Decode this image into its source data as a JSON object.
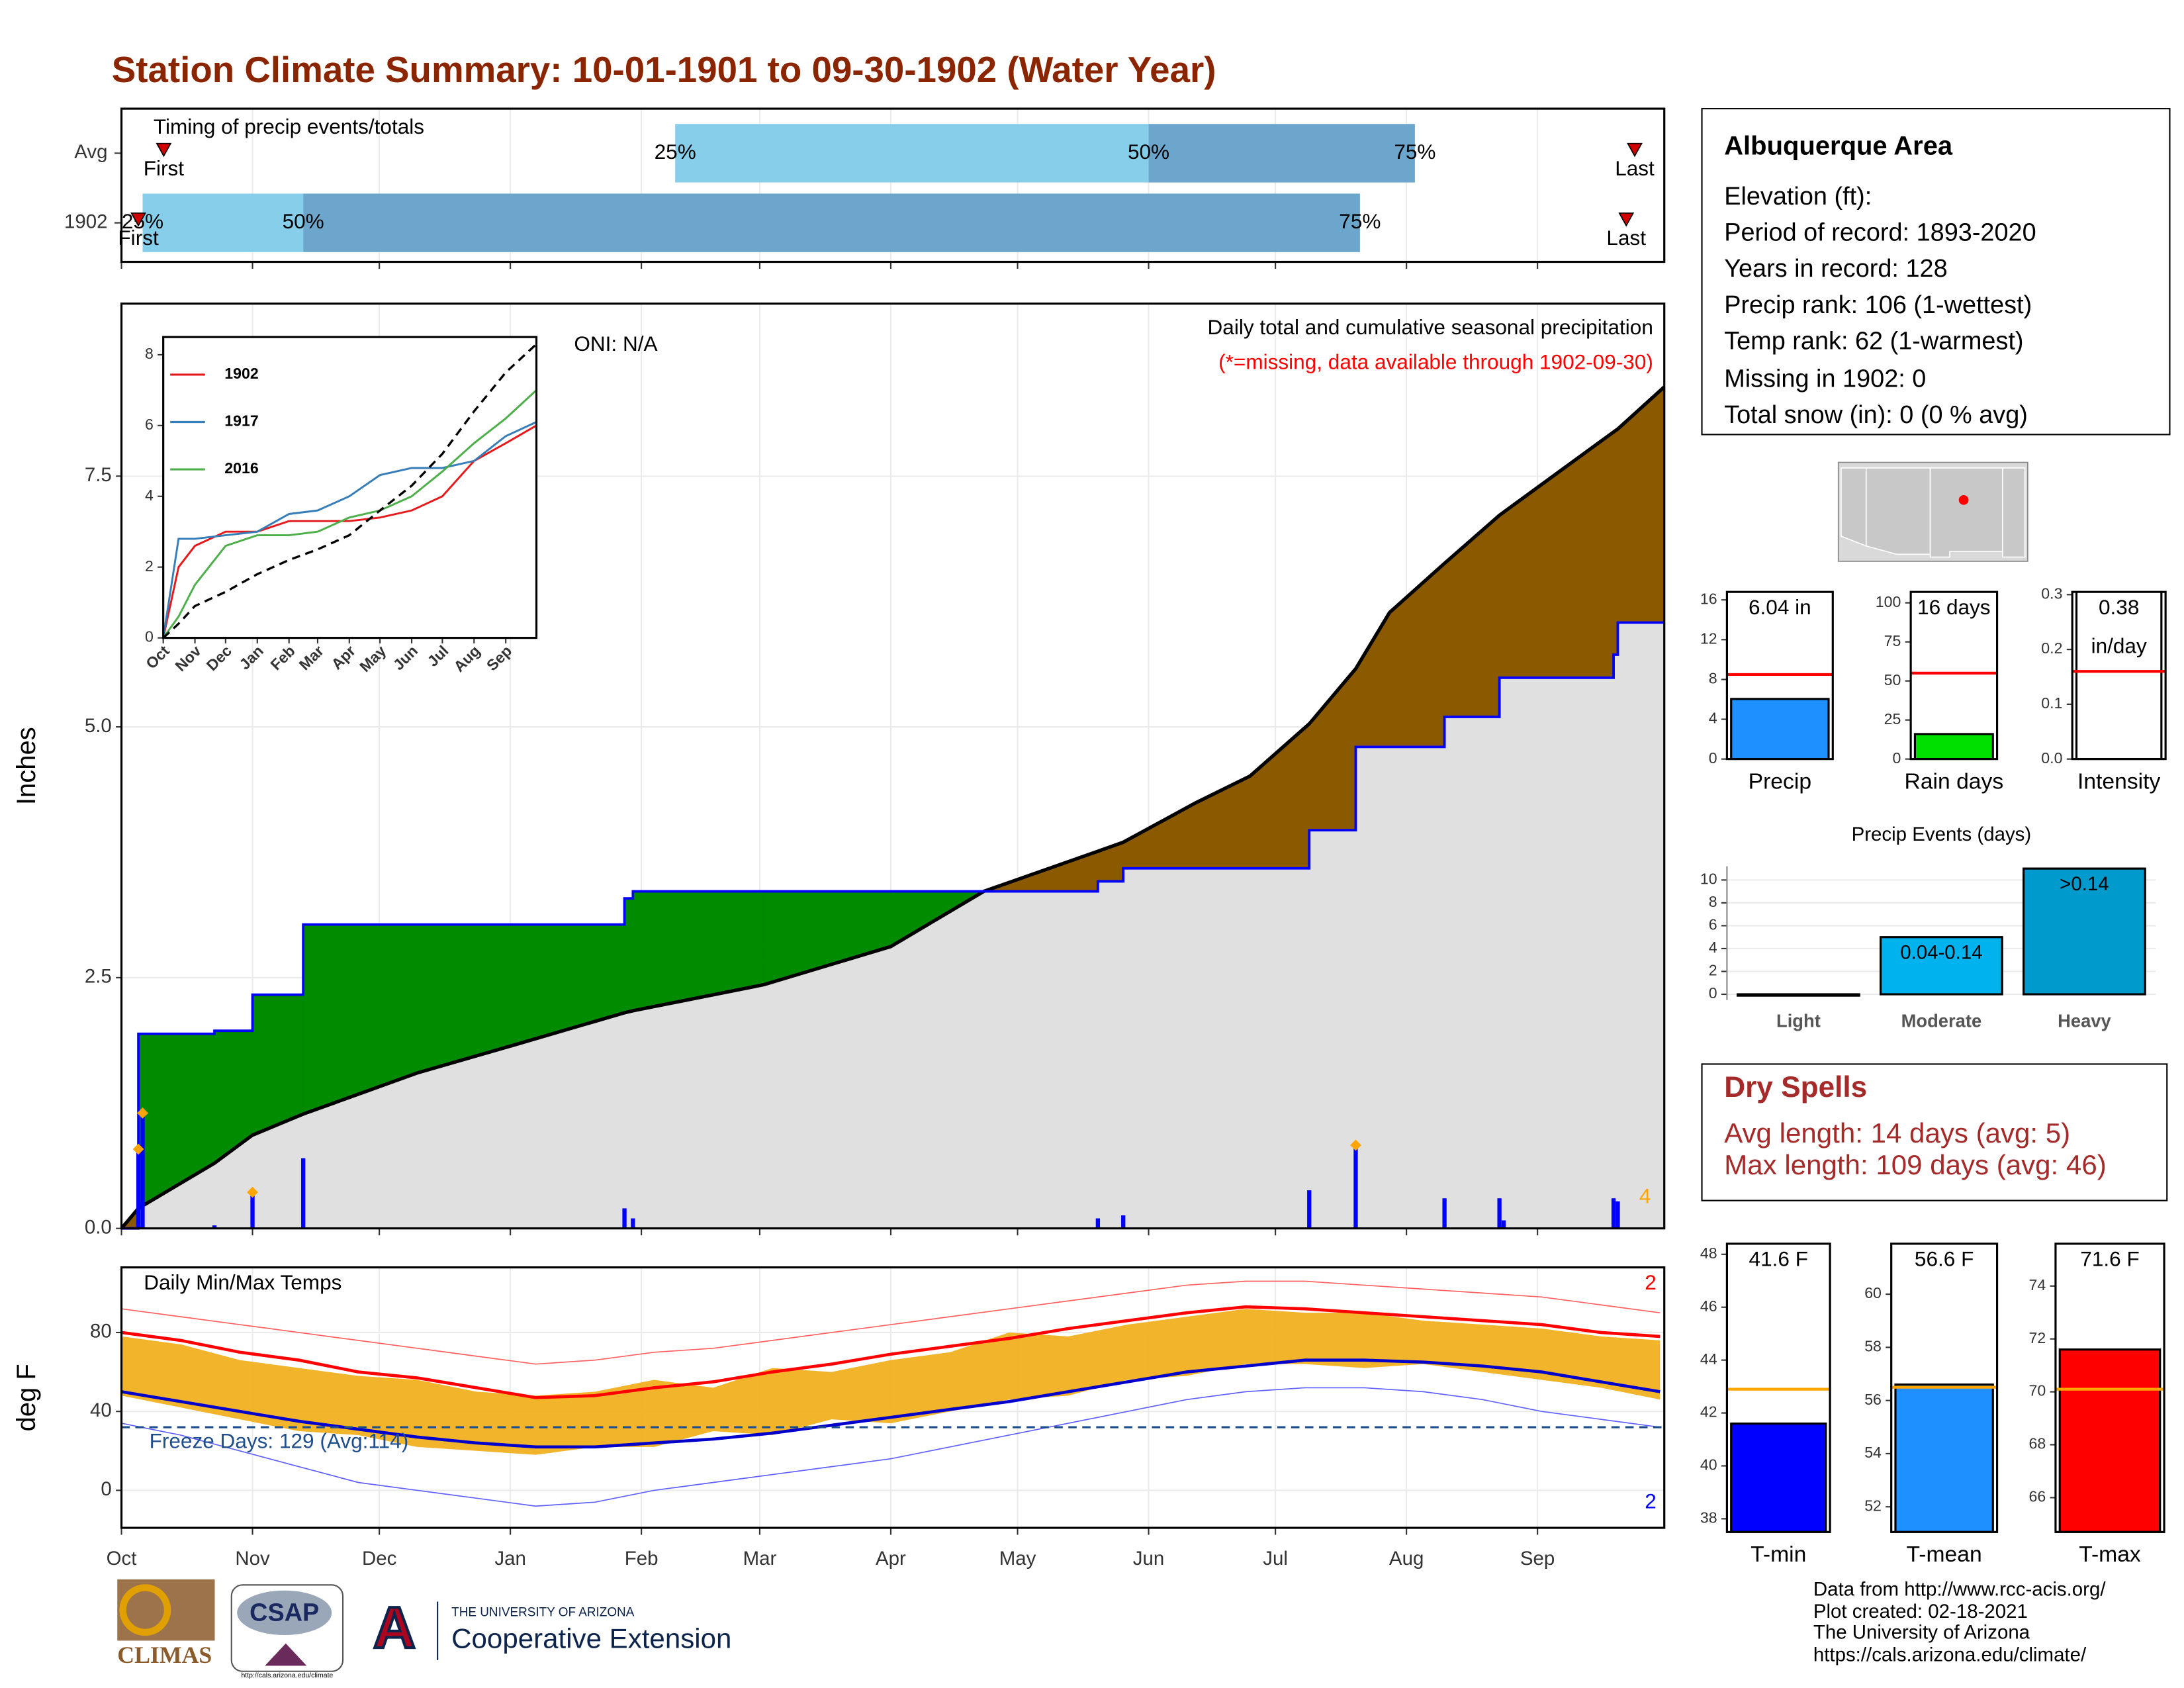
{
  "title": "Station Climate Summary: 10-01-1901 to 09-30-1902 (Water Year)",
  "station": {
    "name": "Albuquerque Area",
    "lines": [
      "Elevation (ft):",
      "Period of record: 1893-2020",
      "Years in record: 128",
      "Precip rank: 106 (1-wettest)",
      "Temp rank: 62 (1-warmest)",
      "Missing in 1902: 0",
      "Total snow (in): 0 (0 % avg)"
    ]
  },
  "dry_spells": {
    "title": "Dry Spells",
    "lines": [
      "Avg length: 14 days (avg: 5)",
      "Max length: 109 days (avg: 46)"
    ]
  },
  "footer": [
    "Data from http://www.rcc-acis.org/",
    "Plot created: 02-18-2021",
    "The University of Arizona",
    "https://cals.arizona.edu/climate/"
  ],
  "logos": {
    "climas": "CLIMAS",
    "csap": "CSAP",
    "csap_url": "http://cals.arizona.edu/climate",
    "ua_letter": "A",
    "ua_name": "THE UNIVERSITY OF ARIZONA",
    "extension": "Cooperative Extension"
  },
  "chart_data": [
    {
      "type": "timeline",
      "title": "Timing of precip events/totals",
      "xlim": [
        0,
        365
      ],
      "marker_labels": {
        "first": "First",
        "p25": "25%",
        "p50": "50%",
        "p75": "75%",
        "last": "Last"
      },
      "light_color": "#87ceeb",
      "dark_color": "#6ca6cd",
      "marker_color": "#d00000",
      "rows": [
        {
          "label": "Avg",
          "first": 10,
          "p25": 131,
          "p50": 243,
          "p75": 306,
          "last": 358
        },
        {
          "label": "1902",
          "first": 4,
          "p25": 5,
          "p50": 43,
          "p75": 293,
          "last": 356
        }
      ]
    },
    {
      "type": "area",
      "title": "Daily total and cumulative seasonal precipitation",
      "note": "(*=missing, data available through 1902-09-30)",
      "oni": "ONI: N/A",
      "y_label": "Inches",
      "corner_label": "4",
      "corner_color": "#ffa500",
      "xlim": [
        0,
        365
      ],
      "ylim": [
        0,
        9.22
      ],
      "yticks": [
        {
          "value": 0,
          "label": "0.0"
        },
        2.5,
        {
          "value": 5,
          "label": "5.0"
        },
        7.5
      ],
      "above_color": "#008b00",
      "below_color": "#8b5a00",
      "base_color": "#e0e0e0",
      "x": [
        0,
        4,
        4,
        22,
        22,
        31,
        31,
        43,
        43,
        70,
        93,
        119,
        119,
        121,
        121,
        152,
        182,
        204,
        231,
        231,
        237,
        237,
        254,
        267,
        281,
        281,
        292,
        292,
        300,
        313,
        313,
        326,
        326,
        353,
        353,
        354,
        354,
        365
      ],
      "series": [
        {
          "name": "1902",
          "color": "#0000ff",
          "values": [
            0,
            0,
            1.94,
            1.94,
            1.97,
            1.97,
            2.33,
            2.33,
            3.03,
            3.03,
            3.03,
            3.03,
            3.29,
            3.29,
            3.36,
            3.36,
            3.36,
            3.36,
            3.36,
            3.46,
            3.46,
            3.59,
            3.59,
            3.59,
            3.59,
            3.97,
            3.97,
            4.8,
            4.8,
            4.8,
            5.1,
            5.1,
            5.49,
            5.49,
            5.72,
            5.72,
            6.04,
            6.04
          ]
        },
        {
          "name": "Average",
          "color": "#000000",
          "values": [
            0,
            0.2,
            0.2,
            0.65,
            0.65,
            0.93,
            0.93,
            1.14,
            1.14,
            1.55,
            1.83,
            2.15,
            2.15,
            2.17,
            2.17,
            2.43,
            2.81,
            3.36,
            3.76,
            3.76,
            3.85,
            3.85,
            4.24,
            4.51,
            5.03,
            5.03,
            5.58,
            5.58,
            6.14,
            6.63,
            6.63,
            7.11,
            7.11,
            7.94,
            7.94,
            7.97,
            7.97,
            8.39
          ]
        }
      ],
      "bars": {
        "color": "#0000ff",
        "x": [
          4,
          5,
          22,
          31,
          43,
          119,
          121,
          231,
          237,
          281,
          292,
          313,
          326,
          327,
          353,
          354
        ],
        "values": [
          0.79,
          1.15,
          0.03,
          0.36,
          0.7,
          0.2,
          0.1,
          0.1,
          0.13,
          0.38,
          0.83,
          0.3,
          0.3,
          0.08,
          0.3,
          0.27
        ],
        "records": [
          0,
          1,
          3,
          10
        ],
        "record_color": "#ffa500"
      }
    },
    {
      "type": "line",
      "xlim": [
        0,
        365
      ],
      "ylim": [
        0,
        8.5
      ],
      "yticks": [
        0,
        2,
        4,
        6,
        8
      ],
      "xticks": [
        {
          "value": 0,
          "label": "Oct"
        },
        {
          "value": 31,
          "label": "Nov"
        },
        {
          "value": 61,
          "label": "Dec"
        },
        {
          "value": 92,
          "label": "Jan"
        },
        {
          "value": 123,
          "label": "Feb"
        },
        {
          "value": 151,
          "label": "Mar"
        },
        {
          "value": 182,
          "label": "Apr"
        },
        {
          "value": 212,
          "label": "May"
        },
        {
          "value": 243,
          "label": "Jun"
        },
        {
          "value": 273,
          "label": "Jul"
        },
        {
          "value": 304,
          "label": "Aug"
        },
        {
          "value": 335,
          "label": "Sep"
        }
      ],
      "x": [
        0,
        15,
        31,
        61,
        92,
        123,
        151,
        182,
        212,
        243,
        273,
        304,
        335,
        365
      ],
      "series": [
        {
          "name": "1902",
          "color": "#e41a1c",
          "values": [
            0,
            2.0,
            2.6,
            3.0,
            3.0,
            3.3,
            3.3,
            3.3,
            3.4,
            3.6,
            4.0,
            5.0,
            5.5,
            6.0
          ]
        },
        {
          "name": "1917",
          "color": "#377eb8",
          "values": [
            0,
            2.8,
            2.8,
            2.9,
            3.0,
            3.5,
            3.6,
            4.0,
            4.6,
            4.8,
            4.8,
            5.0,
            5.7,
            6.1
          ]
        },
        {
          "name": "2016",
          "color": "#4daf4a",
          "values": [
            0,
            0.6,
            1.5,
            2.6,
            2.9,
            2.9,
            3.0,
            3.4,
            3.6,
            4.0,
            4.7,
            5.5,
            6.2,
            7.0
          ]
        },
        {
          "color": "#000000",
          "dash": true,
          "values": [
            0,
            0.4,
            0.9,
            1.3,
            1.8,
            2.2,
            2.5,
            2.9,
            3.6,
            4.3,
            5.2,
            6.4,
            7.5,
            8.3
          ]
        }
      ]
    },
    {
      "type": "range",
      "title": "Daily Min/Max Temps",
      "y_label": "deg F",
      "xlim": [
        0,
        365
      ],
      "ylim": [
        -19,
        113
      ],
      "yticks": [
        0,
        40,
        80
      ],
      "xticks": [
        {
          "value": 0,
          "label": "Oct"
        },
        {
          "value": 31,
          "label": "Nov"
        },
        {
          "value": 61,
          "label": "Dec"
        },
        {
          "value": 92,
          "label": "Jan"
        },
        {
          "value": 123,
          "label": "Feb"
        },
        {
          "value": 151,
          "label": "Mar"
        },
        {
          "value": 182,
          "label": "Apr"
        },
        {
          "value": 212,
          "label": "May"
        },
        {
          "value": 243,
          "label": "Jun"
        },
        {
          "value": 273,
          "label": "Jul"
        },
        {
          "value": 304,
          "label": "Aug"
        },
        {
          "value": 335,
          "label": "Sep"
        }
      ],
      "freeze_line": 32,
      "freeze_color": "#1f4e8c",
      "freeze_label": "Freeze Days: 129 (Avg:114)",
      "max_records_label": "2",
      "min_records_label": "2",
      "x": [
        0,
        14,
        28,
        42,
        56,
        70,
        84,
        98,
        112,
        126,
        140,
        154,
        168,
        182,
        196,
        210,
        224,
        238,
        252,
        266,
        280,
        294,
        308,
        322,
        336,
        350,
        364
      ],
      "daily_max": {
        "color": "#f0b020",
        "values": [
          78,
          74,
          66,
          62,
          58,
          56,
          50,
          48,
          50,
          56,
          52,
          62,
          60,
          66,
          70,
          80,
          78,
          84,
          88,
          92,
          90,
          90,
          86,
          84,
          82,
          78,
          76
        ]
      },
      "daily_min": {
        "color": "#f0b020",
        "values": [
          48,
          42,
          36,
          30,
          28,
          22,
          20,
          18,
          22,
          22,
          30,
          28,
          36,
          34,
          40,
          46,
          48,
          56,
          58,
          64,
          64,
          62,
          64,
          60,
          56,
          52,
          46
        ]
      },
      "avg_max": {
        "color": "#ff0000",
        "values": [
          80,
          76,
          70,
          66,
          60,
          57,
          52,
          47,
          48,
          52,
          55,
          60,
          64,
          69,
          73,
          77,
          82,
          86,
          90,
          93,
          92,
          90,
          88,
          86,
          84,
          80,
          78
        ]
      },
      "avg_min": {
        "color": "#0000cc",
        "values": [
          50,
          45,
          40,
          35,
          31,
          27,
          24,
          22,
          22,
          24,
          26,
          29,
          33,
          37,
          41,
          45,
          50,
          55,
          60,
          63,
          66,
          66,
          65,
          63,
          60,
          55,
          50
        ]
      },
      "record_max": {
        "color": "#ff6060",
        "values": [
          92,
          88,
          84,
          80,
          76,
          72,
          68,
          64,
          66,
          70,
          72,
          76,
          80,
          84,
          88,
          92,
          96,
          100,
          104,
          106,
          106,
          104,
          102,
          100,
          98,
          94,
          90
        ]
      },
      "record_min": {
        "color": "#6060ff",
        "values": [
          34,
          28,
          20,
          12,
          4,
          0,
          -4,
          -8,
          -6,
          0,
          4,
          8,
          12,
          16,
          22,
          28,
          34,
          40,
          46,
          50,
          52,
          52,
          50,
          46,
          40,
          36,
          32
        ]
      }
    },
    {
      "type": "bar",
      "categories": [
        "Precip"
      ],
      "values": [
        6.04
      ],
      "value_labels": [
        "6.04 in"
      ],
      "average": 8.5,
      "average_color": "#ff0000",
      "color": "#1e90ff",
      "ylim": [
        0,
        16.8
      ],
      "yticks": [
        0,
        4,
        8,
        12,
        16
      ]
    },
    {
      "type": "bar",
      "categories": [
        "Rain days"
      ],
      "values": [
        16
      ],
      "value_labels": [
        "16 days"
      ],
      "average": 55,
      "average_color": "#ff0000",
      "color": "#00e000",
      "ylim": [
        0,
        107
      ],
      "yticks": [
        0,
        25,
        50,
        75,
        100
      ]
    },
    {
      "type": "bar",
      "categories": [
        "Intensity"
      ],
      "values": [
        0.38
      ],
      "value_labels": [
        "0.38"
      ],
      "unit": "in/day",
      "average": 0.16,
      "average_color": "#ff0000",
      "color": "#ffffff",
      "ylim": [
        0,
        0.305
      ],
      "yticks": [
        {
          "value": 0,
          "label": "0.0"
        },
        0.1,
        0.2,
        0.3
      ]
    },
    {
      "type": "bar",
      "title": "Precip Events (days)",
      "categories": [
        "Light",
        "Moderate",
        "Heavy"
      ],
      "values": [
        0,
        5,
        11
      ],
      "bin_labels": [
        "0.04-0.14",
        ">0.14"
      ],
      "colors": [
        "#ffffff",
        "#00b2ee",
        "#009acd"
      ],
      "grid": true,
      "ylim": [
        -0.5,
        11.2
      ],
      "yticks": [
        0,
        2,
        4,
        6,
        8,
        10
      ]
    },
    {
      "type": "bar",
      "categories": [
        "T-min"
      ],
      "values": [
        41.6
      ],
      "value_labels": [
        "41.6 F"
      ],
      "average": 42.9,
      "average_color": "#ffa500",
      "color": "#0000ff",
      "ylim": [
        37.5,
        48.4
      ],
      "yticks": [
        38,
        40,
        42,
        44,
        46,
        48
      ]
    },
    {
      "type": "bar",
      "categories": [
        "T-mean"
      ],
      "values": [
        56.6
      ],
      "value_labels": [
        "56.6 F"
      ],
      "average": 56.5,
      "average_color": "#ffa500",
      "color": "#1e90ff",
      "ylim": [
        51.05,
        61.9
      ],
      "yticks": [
        52,
        54,
        56,
        58,
        60
      ]
    },
    {
      "type": "bar",
      "categories": [
        "T-max"
      ],
      "values": [
        71.6
      ],
      "value_labels": [
        "71.6 F"
      ],
      "average": 70.1,
      "average_color": "#ffa500",
      "color": "#ff0000",
      "ylim": [
        64.7,
        75.6
      ],
      "yticks": [
        66,
        68,
        70,
        72,
        74
      ]
    }
  ]
}
